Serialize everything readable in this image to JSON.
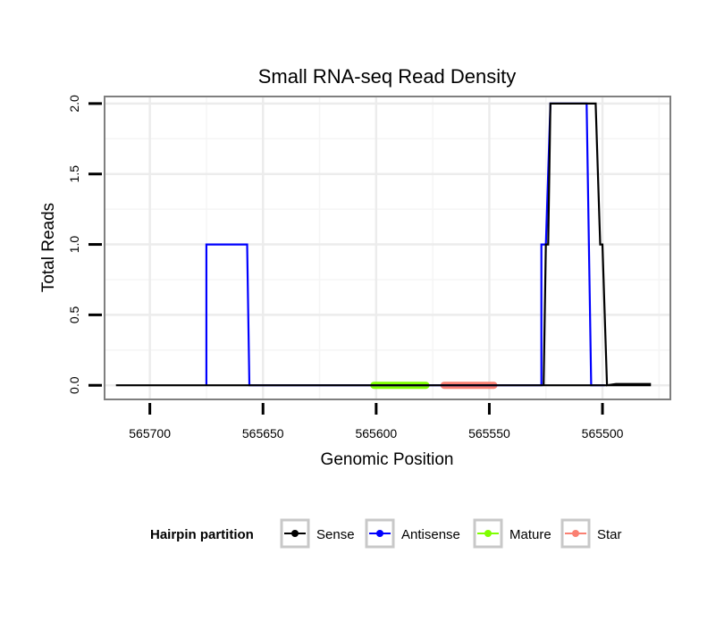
{
  "chart_data": {
    "type": "line",
    "title": "Small RNA-seq Read Density",
    "xlabel": "Genomic Position",
    "ylabel": "Total Reads",
    "x_reversed": true,
    "xlim": [
      565720,
      565470
    ],
    "ylim": [
      -0.1,
      2.05
    ],
    "x_ticks": [
      565700,
      565650,
      565600,
      565550,
      565500
    ],
    "x_tick_labels": [
      "565700",
      "565650",
      "565600",
      "565550",
      "565500"
    ],
    "y_ticks": [
      0,
      0.5,
      1,
      1.5,
      2
    ],
    "y_tick_labels": [
      "0.0",
      "0.5",
      "1.0",
      "1.5",
      "2.0"
    ],
    "grid": true,
    "legend": {
      "title": "Hairpin partition",
      "position": "bottom",
      "entries": [
        "Sense",
        "Antisense",
        "Mature",
        "Star"
      ]
    },
    "series": [
      {
        "name": "Sense",
        "color": "#000000",
        "points": [
          [
            565715,
            0
          ],
          [
            565479,
            0
          ],
          [
            565479,
            0.01
          ],
          [
            565494,
            0.01
          ],
          [
            565498,
            0
          ],
          [
            565498,
            0
          ],
          [
            565500,
            1
          ],
          [
            565501,
            1
          ],
          [
            565503,
            2
          ],
          [
            565523,
            2
          ],
          [
            565524,
            1
          ],
          [
            565525,
            1
          ],
          [
            565526,
            0
          ],
          [
            565532,
            0
          ],
          [
            565715,
            0
          ]
        ]
      },
      {
        "name": "Antisense",
        "color": "#0000ff",
        "points": [
          [
            565675,
            0
          ],
          [
            565675,
            1
          ],
          [
            565657,
            1
          ],
          [
            565656,
            0
          ],
          [
            565604,
            0
          ],
          [
            565575,
            0
          ],
          [
            565531,
            0
          ],
          [
            565527,
            0
          ],
          [
            565527,
            1
          ],
          [
            565525,
            1
          ],
          [
            565523,
            2
          ],
          [
            565507,
            2
          ],
          [
            565505,
            0
          ],
          [
            565499,
            0
          ]
        ]
      },
      {
        "name": "Mature",
        "color": "#7fff00",
        "points": [
          [
            565601,
            0
          ],
          [
            565578,
            0
          ]
        ]
      },
      {
        "name": "Star",
        "color": "#fa8072",
        "points": [
          [
            565570,
            0
          ],
          [
            565548,
            0
          ]
        ]
      }
    ]
  }
}
